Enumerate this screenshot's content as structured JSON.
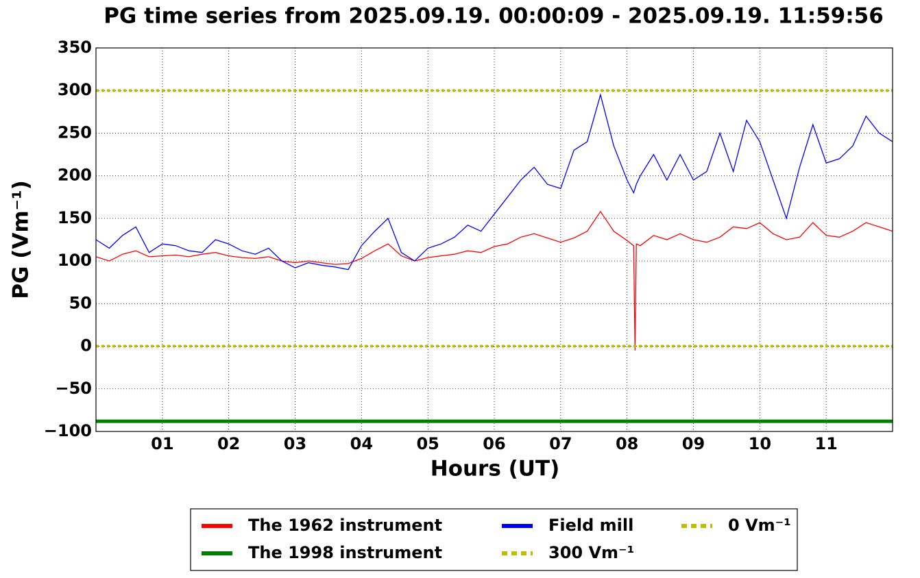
{
  "chart_data": {
    "type": "line",
    "title": "PG time series from 2025.09.19. 00:00:09 - 2025.09.19. 11:59:56",
    "x_label": "Hours (UT)",
    "y_label": "PG (Vm⁻¹)",
    "xlim": [
      0,
      12
    ],
    "ylim": [
      -100,
      350
    ],
    "xticks": [
      {
        "value": 1,
        "label": "01"
      },
      {
        "value": 2,
        "label": "02"
      },
      {
        "value": 3,
        "label": "03"
      },
      {
        "value": 4,
        "label": "04"
      },
      {
        "value": 5,
        "label": "05"
      },
      {
        "value": 6,
        "label": "06"
      },
      {
        "value": 7,
        "label": "07"
      },
      {
        "value": 8,
        "label": "08"
      },
      {
        "value": 9,
        "label": "09"
      },
      {
        "value": 10,
        "label": "10"
      },
      {
        "value": 11,
        "label": "11"
      }
    ],
    "yticks": [
      {
        "value": -100,
        "label": "−100"
      },
      {
        "value": -50,
        "label": "−50"
      },
      0,
      50,
      100,
      150,
      200,
      250,
      300,
      350
    ],
    "grid": true,
    "legend": "below",
    "x": [
      0,
      0.2,
      0.4,
      0.6,
      0.8,
      1.0,
      1.2,
      1.4,
      1.6,
      1.8,
      2.0,
      2.2,
      2.4,
      2.6,
      2.8,
      3.0,
      3.2,
      3.4,
      3.6,
      3.8,
      4.0,
      4.2,
      4.4,
      4.6,
      4.8,
      5.0,
      5.2,
      5.4,
      5.6,
      5.8,
      6.0,
      6.2,
      6.4,
      6.6,
      6.8,
      7.0,
      7.2,
      7.4,
      7.6,
      7.8,
      8.0,
      8.1,
      8.12,
      8.14,
      8.2,
      8.4,
      8.6,
      8.8,
      9.0,
      9.2,
      9.4,
      9.6,
      9.8,
      10.0,
      10.2,
      10.4,
      10.6,
      10.8,
      11.0,
      11.2,
      11.4,
      11.6,
      11.8,
      12.0
    ],
    "series": [
      {
        "name": "The 1962 instrument",
        "color": "#ff0000",
        "values": [
          105,
          100,
          108,
          112,
          105,
          106,
          107,
          105,
          108,
          110,
          106,
          104,
          103,
          105,
          100,
          98,
          100,
          98,
          96,
          97,
          103,
          112,
          120,
          106,
          100,
          104,
          106,
          108,
          112,
          110,
          117,
          120,
          128,
          132,
          127,
          122,
          127,
          135,
          158,
          135,
          124,
          118,
          -5,
          120,
          118,
          130,
          125,
          132,
          125,
          122,
          128,
          140,
          138,
          145,
          132,
          125,
          128,
          145,
          130,
          128,
          135,
          145,
          140,
          135
        ]
      },
      {
        "name": "The 1998 instrument",
        "color": "#008000",
        "values": [
          -88,
          -88,
          -88,
          -88,
          -88,
          -88,
          -88,
          -88,
          -88,
          -88,
          -88,
          -88,
          -88,
          -88,
          -88,
          -88,
          -88,
          -88,
          -88,
          -88,
          -88,
          -88,
          -88,
          -88,
          -88,
          -88,
          -88,
          -88,
          -88,
          -88,
          -88,
          -88,
          -88,
          -88,
          -88,
          -88,
          -88,
          -88,
          -88,
          -88,
          -88,
          -88,
          -88,
          -88,
          -88,
          -88,
          -88,
          -88,
          -88,
          -88,
          -88,
          -88,
          -88,
          -88,
          -88,
          -88,
          -88,
          -88,
          -88,
          -88,
          -88,
          -88,
          -88,
          -88
        ]
      },
      {
        "name": "Field mill",
        "color": "#0000ff",
        "values": [
          125,
          115,
          130,
          140,
          110,
          120,
          118,
          112,
          110,
          125,
          120,
          112,
          108,
          115,
          100,
          92,
          98,
          95,
          93,
          90,
          118,
          135,
          150,
          110,
          100,
          115,
          120,
          128,
          142,
          135,
          155,
          175,
          195,
          210,
          190,
          185,
          230,
          240,
          295,
          235,
          195,
          180,
          185,
          190,
          200,
          225,
          195,
          225,
          195,
          205,
          250,
          205,
          265,
          240,
          195,
          150,
          210,
          260,
          215,
          220,
          235,
          270,
          250,
          240
        ]
      }
    ],
    "reference_lines": [
      {
        "name": "300 Vm⁻¹",
        "value": 300,
        "color": "#bfbf00"
      },
      {
        "name": "0 Vm⁻¹",
        "value": 0,
        "color": "#bfbf00"
      }
    ]
  }
}
